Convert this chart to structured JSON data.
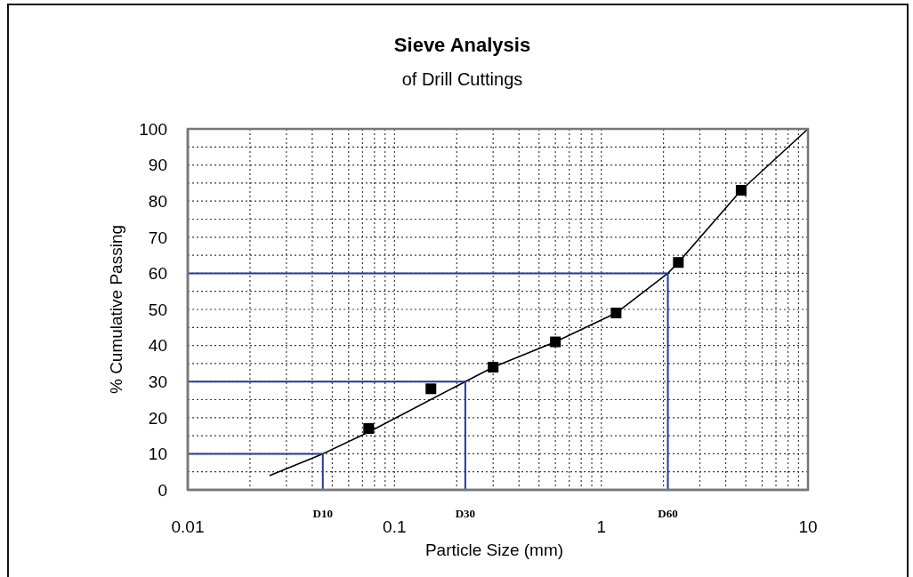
{
  "chart_data": {
    "type": "scatter",
    "title": "Sieve Analysis",
    "subtitle": "of Drill Cuttings",
    "xlabel": "Particle Size (mm)",
    "ylabel": "% Cumulative Passing",
    "log": "x",
    "grid": true,
    "xlim": [
      0.01,
      10
    ],
    "ylim": [
      0,
      100
    ],
    "xticks": [
      0.01,
      {
        "value": 0.02,
        "label": null
      },
      {
        "value": 0.03,
        "label": null
      },
      {
        "value": 0.04,
        "label": null
      },
      {
        "value": 0.05,
        "label": null
      },
      {
        "value": 0.06,
        "label": null
      },
      {
        "value": 0.07,
        "label": null
      },
      {
        "value": 0.08,
        "label": null
      },
      {
        "value": 0.09,
        "label": null
      },
      0.1,
      {
        "value": 0.2,
        "label": null
      },
      {
        "value": 0.3,
        "label": null
      },
      {
        "value": 0.4,
        "label": null
      },
      {
        "value": 0.5,
        "label": null
      },
      {
        "value": 0.6,
        "label": null
      },
      {
        "value": 0.7,
        "label": null
      },
      {
        "value": 0.8,
        "label": null
      },
      {
        "value": 0.9,
        "label": null
      },
      1,
      {
        "value": 2,
        "label": null
      },
      {
        "value": 3,
        "label": null
      },
      {
        "value": 4,
        "label": null
      },
      {
        "value": 5,
        "label": null
      },
      {
        "value": 6,
        "label": null
      },
      {
        "value": 7,
        "label": null
      },
      {
        "value": 8,
        "label": null
      },
      {
        "value": 9,
        "label": null
      },
      10
    ],
    "yticks": [
      0,
      {
        "value": 5,
        "label": null
      },
      10,
      {
        "value": 15,
        "label": null
      },
      20,
      {
        "value": 25,
        "label": null
      },
      30,
      {
        "value": 35,
        "label": null
      },
      40,
      {
        "value": 45,
        "label": null
      },
      50,
      {
        "value": 55,
        "label": null
      },
      60,
      {
        "value": 65,
        "label": null
      },
      70,
      {
        "value": 75,
        "label": null
      },
      80,
      {
        "value": 85,
        "label": null
      },
      90,
      {
        "value": 95,
        "label": null
      },
      100
    ],
    "series": [
      {
        "color": "#000000",
        "marker": "square",
        "x": [
          0.075,
          0.15,
          0.3,
          0.6,
          1.18,
          2.36,
          4.75
        ],
        "values": [
          17,
          28,
          34,
          41,
          49,
          63,
          83
        ]
      },
      {
        "type": "line",
        "color": "#000000",
        "marker": "none",
        "line_style": "solid",
        "x": [
          0.025,
          0.045,
          0.075,
          0.22,
          0.3,
          0.6,
          1.18,
          2.1,
          2.36,
          4.75,
          10
        ],
        "values": [
          4,
          10,
          16,
          30,
          34,
          41,
          49,
          60,
          63,
          83,
          100
        ]
      },
      {
        "type": "line",
        "name": "D10",
        "color": "#24399a",
        "marker": "none",
        "line_style": "solid",
        "x": [
          0.01,
          0.045,
          0.045
        ],
        "values": [
          10,
          10,
          0
        ]
      },
      {
        "type": "line",
        "name": "D30",
        "color": "#24399a",
        "marker": "none",
        "line_style": "solid",
        "x": [
          0.01,
          0.22,
          0.22
        ],
        "values": [
          30,
          30,
          0
        ]
      },
      {
        "type": "line",
        "name": "D60",
        "color": "#24399a",
        "marker": "none",
        "line_style": "solid",
        "x": [
          0.01,
          2.1,
          2.1
        ],
        "values": [
          60,
          60,
          0
        ]
      }
    ]
  }
}
